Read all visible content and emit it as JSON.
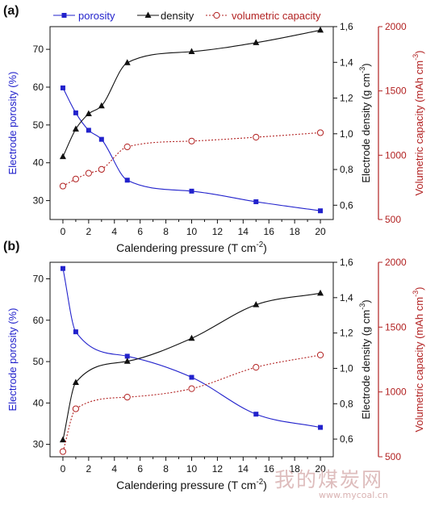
{
  "chart_data": [
    {
      "panel": "(a)",
      "type": "line",
      "x": [
        0,
        1,
        2,
        3,
        5,
        10,
        15,
        20
      ],
      "xlabel": "Calendering pressure (T cm",
      "xlabel_sup": "-2",
      "xlabel_end": ")",
      "xlim": [
        -1,
        21
      ],
      "xticks": [
        0,
        2,
        4,
        6,
        8,
        10,
        12,
        14,
        16,
        18,
        20
      ],
      "legend": {
        "placement": "top"
      },
      "series": [
        {
          "name": "porosity",
          "axis": "left",
          "color": "#2222cc",
          "marker": "square",
          "values": [
            59.8,
            53.2,
            48.6,
            46.2,
            35.4,
            32.5,
            29.7,
            27.3
          ]
        },
        {
          "name": "density",
          "axis": "right1",
          "color": "#111111",
          "marker": "triangle",
          "values": [
            0.872,
            1.026,
            1.112,
            1.156,
            1.398,
            1.46,
            1.51,
            1.58
          ]
        },
        {
          "name": "volumetric capacity",
          "axis": "right2",
          "color": "#b22222",
          "marker": "circle",
          "dotted": true,
          "values": [
            760,
            815,
            860,
            890,
            1065,
            1110,
            1140,
            1175
          ]
        }
      ],
      "axes": {
        "left": {
          "label": "Electrode porosity (%)",
          "lim": [
            25,
            76
          ],
          "ticks": [
            30,
            40,
            50,
            60,
            70
          ],
          "ticklabels": [
            "30",
            "40",
            "50",
            "60",
            "70"
          ]
        },
        "right1": {
          "label": "Electrode density (g cm",
          "label_sup": "-3",
          "label_end": ")",
          "lim": [
            0.52,
            1.6
          ],
          "ticks": [
            0.6,
            0.8,
            1.0,
            1.2,
            1.4,
            1.6
          ],
          "ticklabels": [
            "0,6",
            "0,8",
            "1,0",
            "1,2",
            "1,4",
            "1,6"
          ]
        },
        "right2": {
          "label": "Volumetric capacity (mAh cm",
          "label_sup": "-3",
          "label_end": ")",
          "lim": [
            500,
            2000
          ],
          "ticks": [
            500,
            1000,
            1500,
            2000
          ],
          "ticklabels": [
            "500",
            "1000",
            "1500",
            "2000"
          ]
        }
      }
    },
    {
      "panel": "(b)",
      "type": "line",
      "x": [
        0,
        1,
        5,
        10,
        15,
        20
      ],
      "xlabel": "Calendering pressure (T cm",
      "xlabel_sup": "-2",
      "xlabel_end": ")",
      "xlim": [
        -1,
        21
      ],
      "xticks": [
        0,
        2,
        4,
        6,
        8,
        10,
        12,
        14,
        16,
        18,
        20
      ],
      "series": [
        {
          "name": "porosity",
          "axis": "left",
          "color": "#2222cc",
          "marker": "square",
          "values": [
            72.5,
            57.2,
            51.3,
            46.2,
            37.3,
            34.1
          ]
        },
        {
          "name": "density",
          "axis": "right1",
          "color": "#111111",
          "marker": "triangle",
          "values": [
            0.595,
            0.92,
            1.04,
            1.17,
            1.36,
            1.425
          ]
        },
        {
          "name": "volumetric capacity",
          "axis": "right2",
          "color": "#b22222",
          "marker": "circle",
          "dotted": true,
          "values": [
            540,
            870,
            960,
            1025,
            1190,
            1285
          ]
        }
      ],
      "axes": {
        "left": {
          "label": "Electrode porosity (%)",
          "lim": [
            27,
            74
          ],
          "ticks": [
            30,
            40,
            50,
            60,
            70
          ],
          "ticklabels": [
            "30",
            "40",
            "50",
            "60",
            "70"
          ]
        },
        "right1": {
          "label": "Electrode density (g cm",
          "label_sup": "-3",
          "label_end": ")",
          "lim": [
            0.5,
            1.6
          ],
          "ticks": [
            0.6,
            0.8,
            1.0,
            1.2,
            1.4,
            1.6
          ],
          "ticklabels": [
            "0,6",
            "0,8",
            "1,0",
            "1,2",
            "1,4",
            "1,6"
          ]
        },
        "right2": {
          "label": "Volumetric capacity (mAh cm",
          "label_sup": "-3",
          "label_end": ")",
          "lim": [
            500,
            2000
          ],
          "ticks": [
            500,
            1000,
            1500,
            2000
          ],
          "ticklabels": [
            "500",
            "1000",
            "1500",
            "2000"
          ]
        }
      }
    }
  ],
  "watermark": {
    "cn": "我的煤炭网",
    "url": "www.mycoal.cn"
  }
}
